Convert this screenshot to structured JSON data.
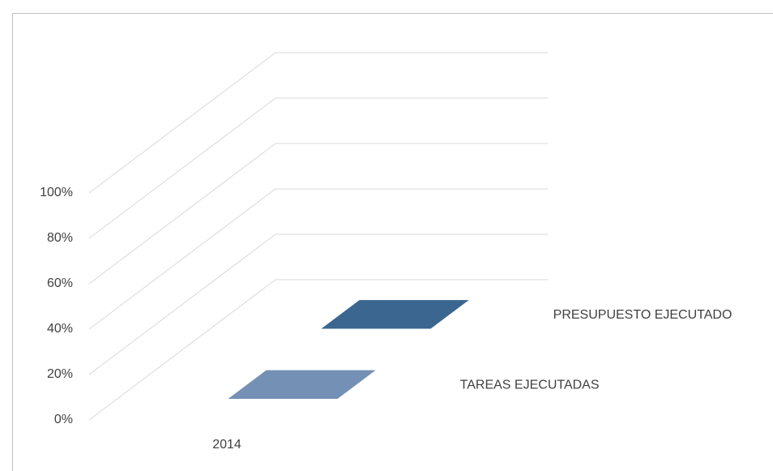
{
  "chart_data": {
    "type": "bar3d",
    "categories": [
      "2014"
    ],
    "series": [
      {
        "name": "TAREAS EJECUTADAS",
        "color": "#7590b5",
        "values": [
          0
        ]
      },
      {
        "name": "PRESUPUESTO EJECUTADO",
        "color": "#3a6690",
        "values": [
          0
        ]
      }
    ],
    "ylim": [
      0,
      100
    ],
    "yticks": [
      {
        "value": 0,
        "label": "0%"
      },
      {
        "value": 20,
        "label": "20%"
      },
      {
        "value": 40,
        "label": "40%"
      },
      {
        "value": 60,
        "label": "60%"
      },
      {
        "value": 80,
        "label": "80%"
      },
      {
        "value": 100,
        "label": "100%"
      }
    ],
    "grid": true
  }
}
